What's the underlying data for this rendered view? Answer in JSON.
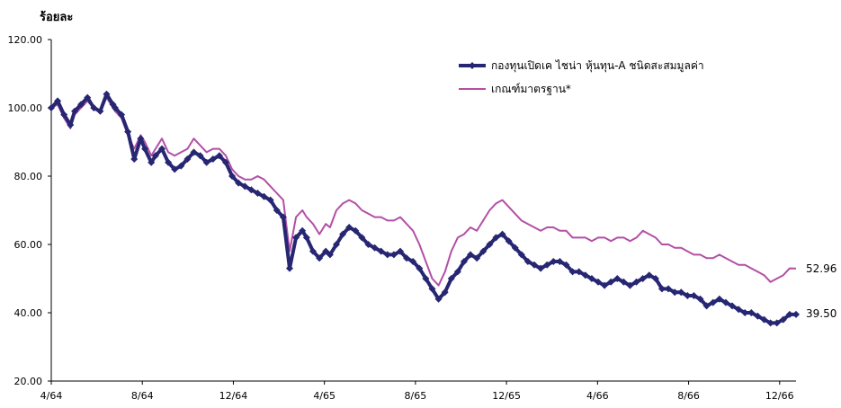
{
  "chart_data": {
    "type": "line",
    "ylabel": "ร้อยละ",
    "xlabel": "",
    "ylim": [
      20,
      120
    ],
    "yticks": [
      "20.00",
      "40.00",
      "60.00",
      "80.00",
      "100.00",
      "120.00"
    ],
    "x_ticks": [
      "4/64",
      "8/64",
      "12/64",
      "4/65",
      "8/65",
      "12/65",
      "4/66",
      "8/66",
      "12/66"
    ],
    "x_range": [
      0,
      35
    ],
    "grid": false,
    "legend_position": "top-right",
    "series": [
      {
        "name": "กองทุนเปิดเค ไชน่า หุ้นทุน-A ชนิดสะสมมูลค่า",
        "color": "#262673",
        "marker": "diamond",
        "end_label": "39.50",
        "x": [
          0,
          0.3,
          0.6,
          0.9,
          1.1,
          1.4,
          1.7,
          2.0,
          2.3,
          2.6,
          2.9,
          3.0,
          3.3,
          3.6,
          3.9,
          4.2,
          4.4,
          4.7,
          4.9,
          5.2,
          5.5,
          5.8,
          6.1,
          6.4,
          6.7,
          7.0,
          7.3,
          7.6,
          7.9,
          8.2,
          8.5,
          8.8,
          9.1,
          9.4,
          9.7,
          10.0,
          10.3,
          10.6,
          10.9,
          11.2,
          11.5,
          11.8,
          12.0,
          12.3,
          12.6,
          12.9,
          13.1,
          13.4,
          13.7,
          14.0,
          14.3,
          14.6,
          14.9,
          15.2,
          15.5,
          15.8,
          16.1,
          16.4,
          16.7,
          17.0,
          17.3,
          17.6,
          17.9,
          18.2,
          18.5,
          18.8,
          19.1,
          19.4,
          19.7,
          20.0,
          20.3,
          20.6,
          20.9,
          21.2,
          21.5,
          21.8,
          22.1,
          22.4,
          22.7,
          23.0,
          23.3,
          23.6,
          23.9,
          24.2,
          24.5,
          24.8,
          25.1,
          25.4,
          25.7,
          26.0,
          26.3,
          26.6,
          26.9,
          27.2,
          27.5,
          27.8,
          28.1,
          28.4,
          28.7,
          29.0,
          29.3,
          29.6,
          29.9,
          30.2,
          30.5,
          30.8,
          31.1,
          31.4,
          31.7,
          32.0,
          32.3,
          32.6,
          32.9,
          33.2,
          33.5,
          33.8,
          34.1,
          34.4,
          34.7,
          35.0
        ],
        "values": [
          100,
          102,
          98,
          95,
          99,
          101,
          103,
          100,
          99,
          104,
          101,
          100,
          98,
          93,
          85,
          91,
          88,
          84,
          86,
          88,
          84,
          82,
          83,
          85,
          87,
          86,
          84,
          85,
          86,
          84,
          80,
          78,
          77,
          76,
          75,
          74,
          73,
          70,
          68,
          53,
          62,
          64,
          62,
          58,
          56,
          58,
          57,
          60,
          63,
          65,
          64,
          62,
          60,
          59,
          58,
          57,
          57,
          58,
          56,
          55,
          53,
          50,
          47,
          44,
          46,
          50,
          52,
          55,
          57,
          56,
          58,
          60,
          62,
          63,
          61,
          59,
          57,
          55,
          54,
          53,
          54,
          55,
          55,
          54,
          52,
          52,
          51,
          50,
          49,
          48,
          49,
          50,
          49,
          48,
          49,
          50,
          51,
          50,
          47,
          47,
          46,
          46,
          45,
          45,
          44,
          42,
          43,
          44,
          43,
          42,
          41,
          40,
          40,
          39,
          38,
          37,
          37,
          38,
          39.5,
          39.5
        ]
      },
      {
        "name": "เกณฑ์มาตรฐาน*",
        "color": "#b34fa6",
        "marker": "none",
        "end_label": "52.96",
        "x": [
          0,
          0.3,
          0.6,
          0.9,
          1.1,
          1.4,
          1.7,
          2.0,
          2.3,
          2.6,
          2.9,
          3.0,
          3.3,
          3.6,
          3.9,
          4.2,
          4.4,
          4.7,
          4.9,
          5.2,
          5.5,
          5.8,
          6.1,
          6.4,
          6.7,
          7.0,
          7.3,
          7.6,
          7.9,
          8.2,
          8.5,
          8.8,
          9.1,
          9.4,
          9.7,
          10.0,
          10.3,
          10.6,
          10.9,
          11.2,
          11.5,
          11.8,
          12.0,
          12.3,
          12.6,
          12.9,
          13.1,
          13.4,
          13.7,
          14.0,
          14.3,
          14.6,
          14.9,
          15.2,
          15.5,
          15.8,
          16.1,
          16.4,
          16.7,
          17.0,
          17.3,
          17.6,
          17.9,
          18.2,
          18.5,
          18.8,
          19.1,
          19.4,
          19.7,
          20.0,
          20.3,
          20.6,
          20.9,
          21.2,
          21.5,
          21.8,
          22.1,
          22.4,
          22.7,
          23.0,
          23.3,
          23.6,
          23.9,
          24.2,
          24.5,
          24.8,
          25.1,
          25.4,
          25.7,
          26.0,
          26.3,
          26.6,
          26.9,
          27.2,
          27.5,
          27.8,
          28.1,
          28.4,
          28.7,
          29.0,
          29.3,
          29.6,
          29.9,
          30.2,
          30.5,
          30.8,
          31.1,
          31.4,
          31.7,
          32.0,
          32.3,
          32.6,
          32.9,
          33.2,
          33.5,
          33.8,
          34.1,
          34.4,
          34.7,
          35.0
        ],
        "values": [
          100,
          101,
          97,
          94,
          98,
          100,
          102,
          100,
          99,
          103,
          100,
          99,
          97,
          92,
          88,
          92,
          90,
          86,
          88,
          91,
          87,
          86,
          87,
          88,
          91,
          89,
          87,
          88,
          88,
          86,
          82,
          80,
          79,
          79,
          80,
          79,
          77,
          75,
          73,
          58,
          68,
          70,
          68,
          66,
          63,
          66,
          65,
          70,
          72,
          73,
          72,
          70,
          69,
          68,
          68,
          67,
          67,
          68,
          66,
          64,
          60,
          55,
          50,
          48,
          52,
          58,
          62,
          63,
          65,
          64,
          67,
          70,
          72,
          73,
          71,
          69,
          67,
          66,
          65,
          64,
          65,
          65,
          64,
          64,
          62,
          62,
          62,
          61,
          62,
          62,
          61,
          62,
          62,
          61,
          62,
          64,
          63,
          62,
          60,
          60,
          59,
          59,
          58,
          57,
          57,
          56,
          56,
          57,
          56,
          55,
          54,
          54,
          53,
          52,
          51,
          49,
          50,
          51,
          53,
          52.96
        ]
      }
    ]
  }
}
